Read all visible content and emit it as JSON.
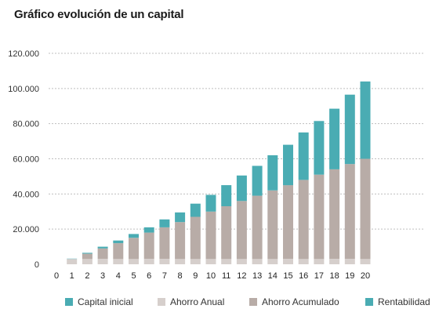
{
  "title": "Gráfico evolución de un capital",
  "colors": {
    "capital_inicial": "#4aacb3",
    "ahorro_anual": "#d6cfcc",
    "ahorro_acumulado": "#b8aca7",
    "rentabilidad": "#4aacb3",
    "grid": "#bfbfbf"
  },
  "legend": [
    "Capital inicial",
    "Ahorro Anual",
    "Ahorro Acumulado",
    "Rentabilidad"
  ],
  "chart_data": {
    "type": "bar",
    "stacked": true,
    "title": "Gráfico evolución de un capital",
    "xlabel": "",
    "ylabel": "",
    "ylim": [
      0,
      120000
    ],
    "yticks": [
      "0",
      "20.000",
      "40.000",
      "60.000",
      "80.000",
      "100.000",
      "120.000"
    ],
    "ytick_values": [
      0,
      20000,
      40000,
      60000,
      80000,
      100000,
      120000
    ],
    "categories": [
      "0",
      "1",
      "2",
      "3",
      "4",
      "5",
      "6",
      "7",
      "8",
      "9",
      "10",
      "11",
      "12",
      "13",
      "14",
      "15",
      "16",
      "17",
      "18",
      "19",
      "20"
    ],
    "grid": true,
    "legend_position": "bottom",
    "series": [
      {
        "name": "Capital inicial",
        "values": [
          0,
          0,
          0,
          0,
          0,
          0,
          0,
          0,
          0,
          0,
          0,
          0,
          0,
          0,
          0,
          0,
          0,
          0,
          0,
          0,
          0
        ]
      },
      {
        "name": "Ahorro Anual",
        "values": [
          0,
          3000,
          3000,
          3000,
          3000,
          3000,
          3000,
          3000,
          3000,
          3000,
          3000,
          3000,
          3000,
          3000,
          3000,
          3000,
          3000,
          3000,
          3000,
          3000,
          3000
        ]
      },
      {
        "name": "Ahorro Acumulado",
        "values": [
          0,
          0,
          3000,
          6000,
          9000,
          12000,
          15000,
          18000,
          21000,
          24000,
          27000,
          30000,
          33000,
          36000,
          39000,
          42000,
          45000,
          48000,
          51000,
          54000,
          57000
        ]
      },
      {
        "name": "Rentabilidad",
        "values": [
          0,
          200,
          500,
          1000,
          1500,
          2200,
          3000,
          4500,
          5500,
          7500,
          9500,
          12000,
          14500,
          17000,
          20000,
          23000,
          27000,
          30500,
          34500,
          39500,
          44000
        ]
      }
    ]
  }
}
